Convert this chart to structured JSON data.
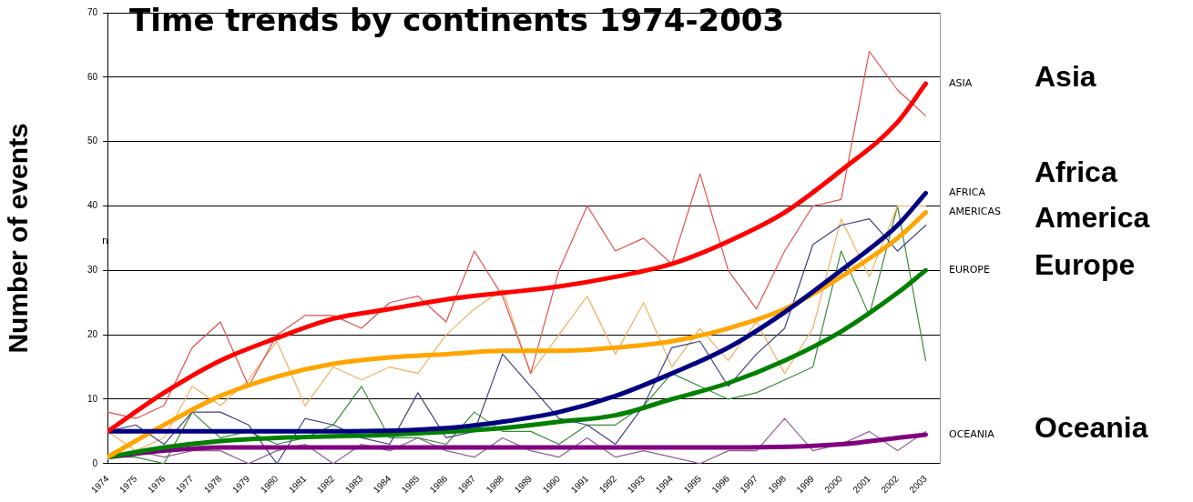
{
  "chart_data": {
    "type": "line",
    "title": "Time trends by continents 1974-2003",
    "ylabel": "Number of events",
    "annotations": [
      "n",
      "Asia",
      "Africa",
      "America",
      "Europe",
      "Oceania"
    ],
    "x": [
      1974,
      1975,
      1976,
      1977,
      1978,
      1979,
      1980,
      1981,
      1982,
      1983,
      1984,
      1985,
      1986,
      1987,
      1988,
      1989,
      1990,
      1991,
      1992,
      1993,
      1994,
      1995,
      1996,
      1997,
      1998,
      1999,
      2000,
      2001,
      2002,
      2003
    ],
    "xlim": [
      1974,
      2003.5
    ],
    "xticks": [
      1974,
      1975,
      1976,
      1977,
      1978,
      1979,
      1980,
      1981,
      1982,
      1983,
      1984,
      1985,
      1986,
      1987,
      1988,
      1989,
      1990,
      1991,
      1992,
      1993,
      1994,
      1995,
      1996,
      1997,
      1998,
      1999,
      2000,
      2001,
      2002,
      2003
    ],
    "ylim": [
      0,
      70
    ],
    "yticks": [
      0,
      10,
      20,
      30,
      40,
      50,
      60,
      70
    ],
    "grid": "y",
    "legend": false,
    "marker": "none",
    "line_style": "solid",
    "series": [
      {
        "color": "#e05050",
        "values": [
          8,
          7,
          9,
          18,
          22,
          12,
          20,
          23,
          23,
          21,
          25,
          26,
          22,
          33,
          26,
          14,
          30,
          40,
          33,
          35,
          31,
          45,
          30,
          24,
          33,
          40,
          41,
          64,
          58,
          54
        ]
      },
      {
        "color": "#404080",
        "values": [
          5,
          6,
          3,
          8,
          8,
          6,
          0,
          7,
          6,
          4,
          3,
          11,
          4,
          5,
          17,
          12,
          7,
          6,
          3,
          9,
          18,
          19,
          12,
          17,
          21,
          34,
          37,
          38,
          33,
          37
        ]
      },
      {
        "color": "#f0b060",
        "values": [
          5,
          2,
          4,
          12,
          9,
          13,
          19,
          9,
          15,
          13,
          15,
          14,
          20,
          24,
          27,
          14,
          20,
          26,
          17,
          25,
          15,
          21,
          16,
          22,
          14,
          21,
          38,
          29,
          40,
          40
        ]
      },
      {
        "color": "#3a8a3a",
        "values": [
          1,
          1,
          0,
          8,
          4,
          5,
          3,
          4,
          6,
          12,
          4,
          4,
          3,
          8,
          5,
          5,
          3,
          6,
          6,
          9,
          14,
          12,
          10,
          11,
          13,
          15,
          33,
          23,
          40,
          16
        ]
      },
      {
        "color": "#906090",
        "values": [
          1,
          2,
          1,
          2,
          2,
          0,
          2,
          3,
          0,
          3,
          2,
          4,
          2,
          1,
          4,
          2,
          1,
          4,
          1,
          2,
          1,
          0,
          2,
          2,
          7,
          2,
          3,
          5,
          2,
          5
        ]
      },
      {
        "name": "ASIA",
        "color": "#ff0000",
        "x": [
          1974,
          1976,
          1978,
          1980,
          1982,
          1984,
          1986,
          1988,
          1990,
          1992,
          1994,
          1996,
          1998,
          2000,
          2002,
          2003
        ],
        "values": [
          5,
          11,
          16,
          19.5,
          22.5,
          24,
          25.5,
          26.5,
          27.5,
          29,
          31,
          34.5,
          39,
          45.5,
          53,
          59
        ]
      },
      {
        "name": "AFRICA",
        "color": "#000080",
        "x": [
          1974,
          1978,
          1982,
          1986,
          1988,
          1990,
          1992,
          1994,
          1996,
          1998,
          2000,
          2002,
          2003
        ],
        "values": [
          5,
          5,
          5,
          5.5,
          6.5,
          8,
          10.5,
          14,
          18,
          23.5,
          30,
          37,
          42
        ]
      },
      {
        "name": "AMERICAS",
        "color": "#ffa500",
        "x": [
          1974,
          1976,
          1978,
          1980,
          1982,
          1984,
          1986,
          1988,
          1990,
          1992,
          1994,
          1996,
          1998,
          2000,
          2002,
          2003
        ],
        "values": [
          1,
          6,
          10.5,
          13.5,
          15.5,
          16.5,
          17,
          17.5,
          17.5,
          18,
          19,
          21,
          24,
          29,
          35,
          39
        ]
      },
      {
        "name": "EUROPE",
        "color": "#008000",
        "x": [
          1974,
          1976,
          1978,
          1980,
          1984,
          1988,
          1990,
          1992,
          1994,
          1996,
          1998,
          2000,
          2002,
          2003
        ],
        "values": [
          1,
          2.5,
          3.5,
          4,
          4.5,
          5.5,
          6.5,
          7.5,
          10,
          12.5,
          16,
          20.5,
          26.5,
          30
        ]
      },
      {
        "name": "OCEANIA",
        "color": "#800080",
        "x": [
          1974,
          1976,
          1978,
          1982,
          1990,
          1996,
          2000,
          2002,
          2003
        ],
        "values": [
          1,
          2,
          2.5,
          2.5,
          2.5,
          2.5,
          3,
          4,
          4.5
        ]
      }
    ]
  }
}
